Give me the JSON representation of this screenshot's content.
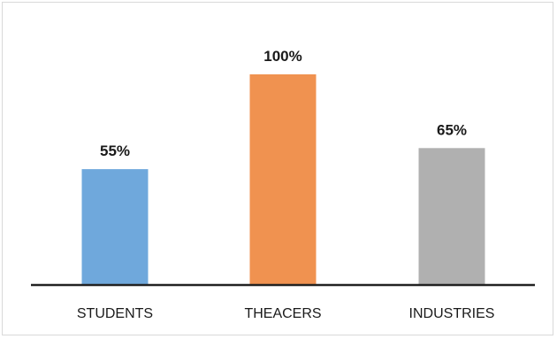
{
  "chart_data": {
    "type": "bar",
    "categories": [
      "STUDENTS",
      "THEACERS",
      "INDUSTRIES"
    ],
    "values": [
      55,
      100,
      65
    ],
    "data_labels": [
      "55%",
      "100%",
      "65%"
    ],
    "colors": [
      "#6fa8dc",
      "#f09250",
      "#b0b0b0"
    ],
    "ylim": [
      0,
      100
    ],
    "grid": false,
    "legend": "none"
  }
}
